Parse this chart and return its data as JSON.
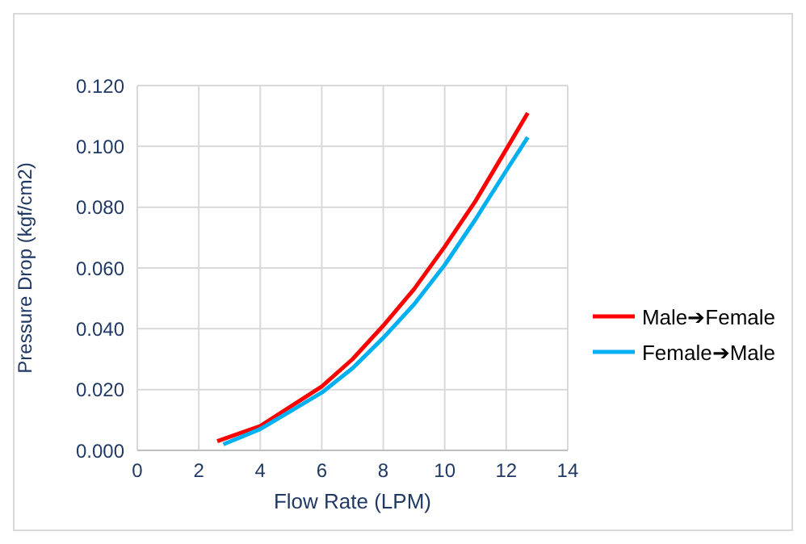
{
  "chart_data": {
    "type": "line",
    "xlabel": "Flow Rate (LPM)",
    "ylabel": "Pressure Drop (kgf/cm2)",
    "xlim": [
      0,
      14
    ],
    "xticks": [
      0,
      2,
      4,
      6,
      8,
      10,
      12,
      14
    ],
    "ylim": [
      0,
      0.12
    ],
    "yticks": [
      {
        "value": 0,
        "label": "0.000"
      },
      {
        "value": 0.02,
        "label": "0.020"
      },
      {
        "value": 0.04,
        "label": "0.040"
      },
      {
        "value": 0.06,
        "label": "0.060"
      },
      {
        "value": 0.08,
        "label": "0.080"
      },
      {
        "value": 0.1,
        "label": "0.100"
      },
      {
        "value": 0.12,
        "label": "0.120"
      }
    ],
    "grid": true,
    "legend": "right",
    "marker": "none",
    "line_style": "solid",
    "series": [
      {
        "name": "Male➔Female",
        "color": "#ff0000",
        "x": [
          2.6,
          4,
          5,
          6,
          7,
          8,
          9,
          10,
          11,
          12,
          12.7
        ],
        "values": [
          0.003,
          0.008,
          0.0145,
          0.021,
          0.03,
          0.041,
          0.053,
          0.067,
          0.082,
          0.099,
          0.111
        ]
      },
      {
        "name": "Female➔Male",
        "color": "#00b0f0",
        "x": [
          2.8,
          4,
          5,
          6,
          7,
          8,
          9,
          10,
          11,
          12,
          12.7
        ],
        "values": [
          0.002,
          0.007,
          0.013,
          0.019,
          0.027,
          0.037,
          0.048,
          0.061,
          0.076,
          0.092,
          0.103
        ]
      }
    ]
  }
}
